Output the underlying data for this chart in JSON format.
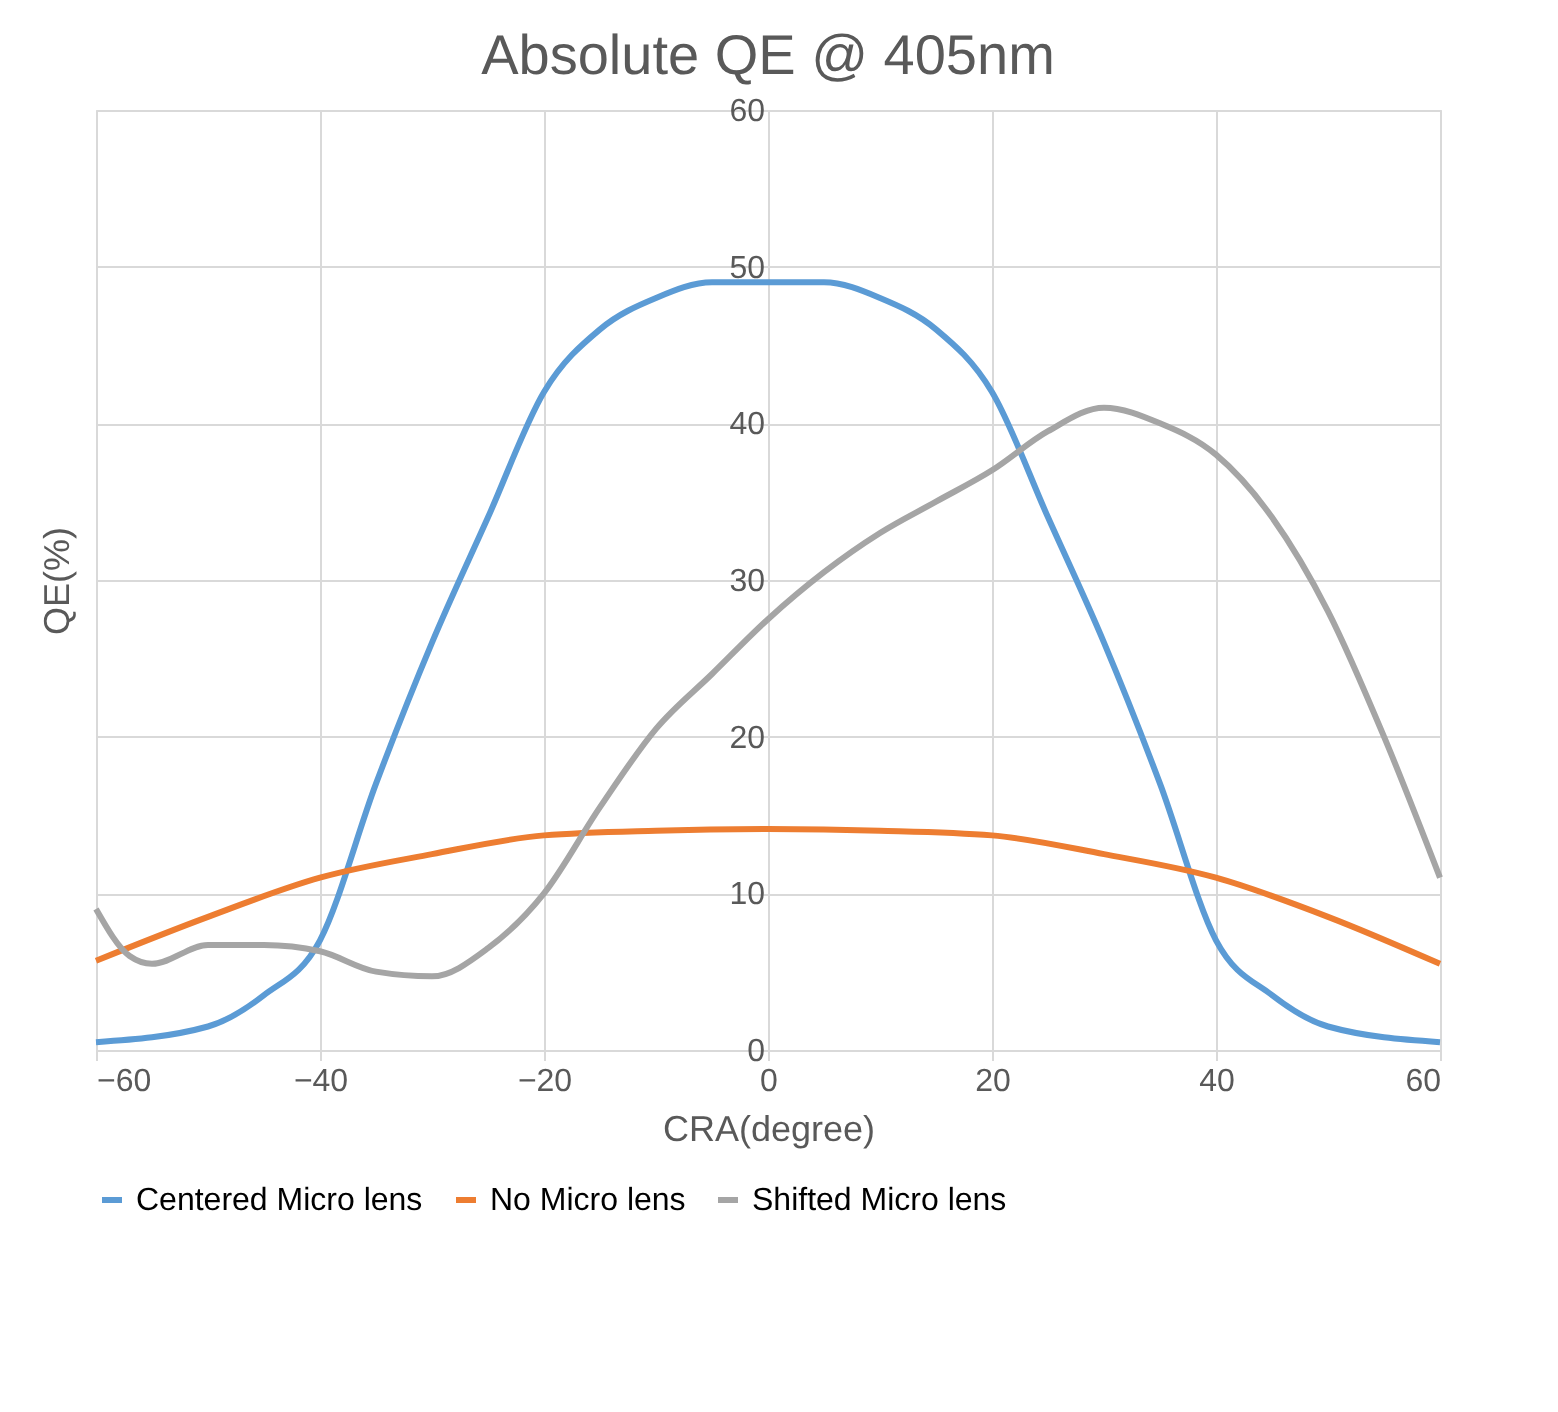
{
  "chart_data": {
    "type": "line",
    "title": "Absolute QE @ 405nm",
    "xlabel": "CRA(degree)",
    "ylabel": "QE(%)",
    "xlim": [
      -60,
      60
    ],
    "xticks": [
      -60,
      -40,
      -20,
      0,
      20,
      40,
      60
    ],
    "ylim": [
      0,
      60
    ],
    "yticks": [
      0,
      10,
      20,
      30,
      40,
      50,
      60
    ],
    "grid": true,
    "legend": "bottom",
    "marker": "none",
    "line_style": "solid",
    "series": [
      {
        "name": "Centered Micro lens",
        "color": "#5b9bd5",
        "x": [
          -60,
          -50,
          -45,
          -40,
          -35,
          -30,
          -25,
          -20,
          -15,
          -10,
          -5,
          0,
          5,
          10,
          15,
          20,
          25,
          30,
          35,
          40,
          45,
          50,
          60
        ],
        "values": [
          0.5,
          1.5,
          3.5,
          7,
          17,
          26,
          34,
          42,
          46,
          48,
          49,
          49,
          49,
          48,
          46,
          42,
          34,
          26,
          17,
          7,
          3.5,
          1.5,
          0.5
        ]
      },
      {
        "name": "No Micro lens",
        "color": "#ed7d31",
        "x": [
          -60,
          -50,
          -40,
          -30,
          -20,
          -10,
          0,
          10,
          20,
          30,
          40,
          50,
          60
        ],
        "values": [
          5.7,
          8.5,
          11,
          12.5,
          13.7,
          14,
          14.1,
          14,
          13.7,
          12.5,
          11,
          8.5,
          5.5
        ]
      },
      {
        "name": "Shifted Micro lens",
        "color": "#a5a5a5",
        "x": [
          -60,
          -57,
          -55,
          -50,
          -45,
          -40,
          -35,
          -30,
          -25,
          -20,
          -15,
          -10,
          -5,
          0,
          5,
          10,
          15,
          20,
          25,
          30,
          35,
          40,
          45,
          50,
          55,
          60
        ],
        "values": [
          9,
          6,
          5.5,
          6.7,
          6.7,
          6.3,
          5,
          4.7,
          6.5,
          10,
          15.5,
          20.5,
          24,
          27.5,
          30.5,
          33,
          35,
          37,
          39.5,
          41,
          40,
          38,
          34,
          28,
          20,
          11
        ]
      }
    ]
  }
}
